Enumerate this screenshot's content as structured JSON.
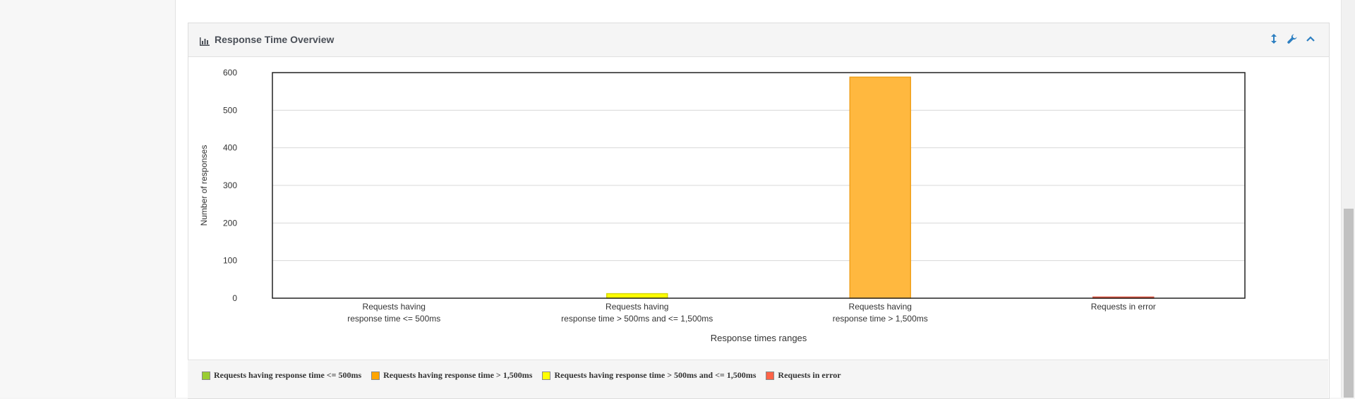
{
  "panel": {
    "title": "Response Time Overview",
    "icons": [
      "bar-chart-icon",
      "resize-vertical-icon",
      "wrench-icon",
      "chevron-up-icon"
    ]
  },
  "colors": {
    "le500": "#9acd32",
    "gt1500": "#ffb83f",
    "mid": "#ffff00",
    "error": "#ff6347"
  },
  "chart_data": {
    "type": "bar",
    "ylabel": "Number of responses",
    "xlabel": "Response times ranges",
    "ylim": [
      0,
      600
    ],
    "yticks": [
      0,
      100,
      200,
      300,
      400,
      500,
      600
    ],
    "grid": true,
    "categories": [
      [
        "Requests having",
        "response time <= 500ms"
      ],
      [
        "Requests having",
        "response time > 500ms and <= 1,500ms"
      ],
      [
        "Requests having",
        "response time > 1,500ms"
      ],
      [
        "Requests in error"
      ]
    ],
    "values": [
      0,
      12,
      588,
      3
    ],
    "legend": [
      "Requests having response time <= 500ms",
      "Requests having response time > 1,500ms",
      "Requests having response time > 500ms and <= 1,500ms",
      "Requests in error"
    ],
    "legend_placement": "bottom-left"
  }
}
